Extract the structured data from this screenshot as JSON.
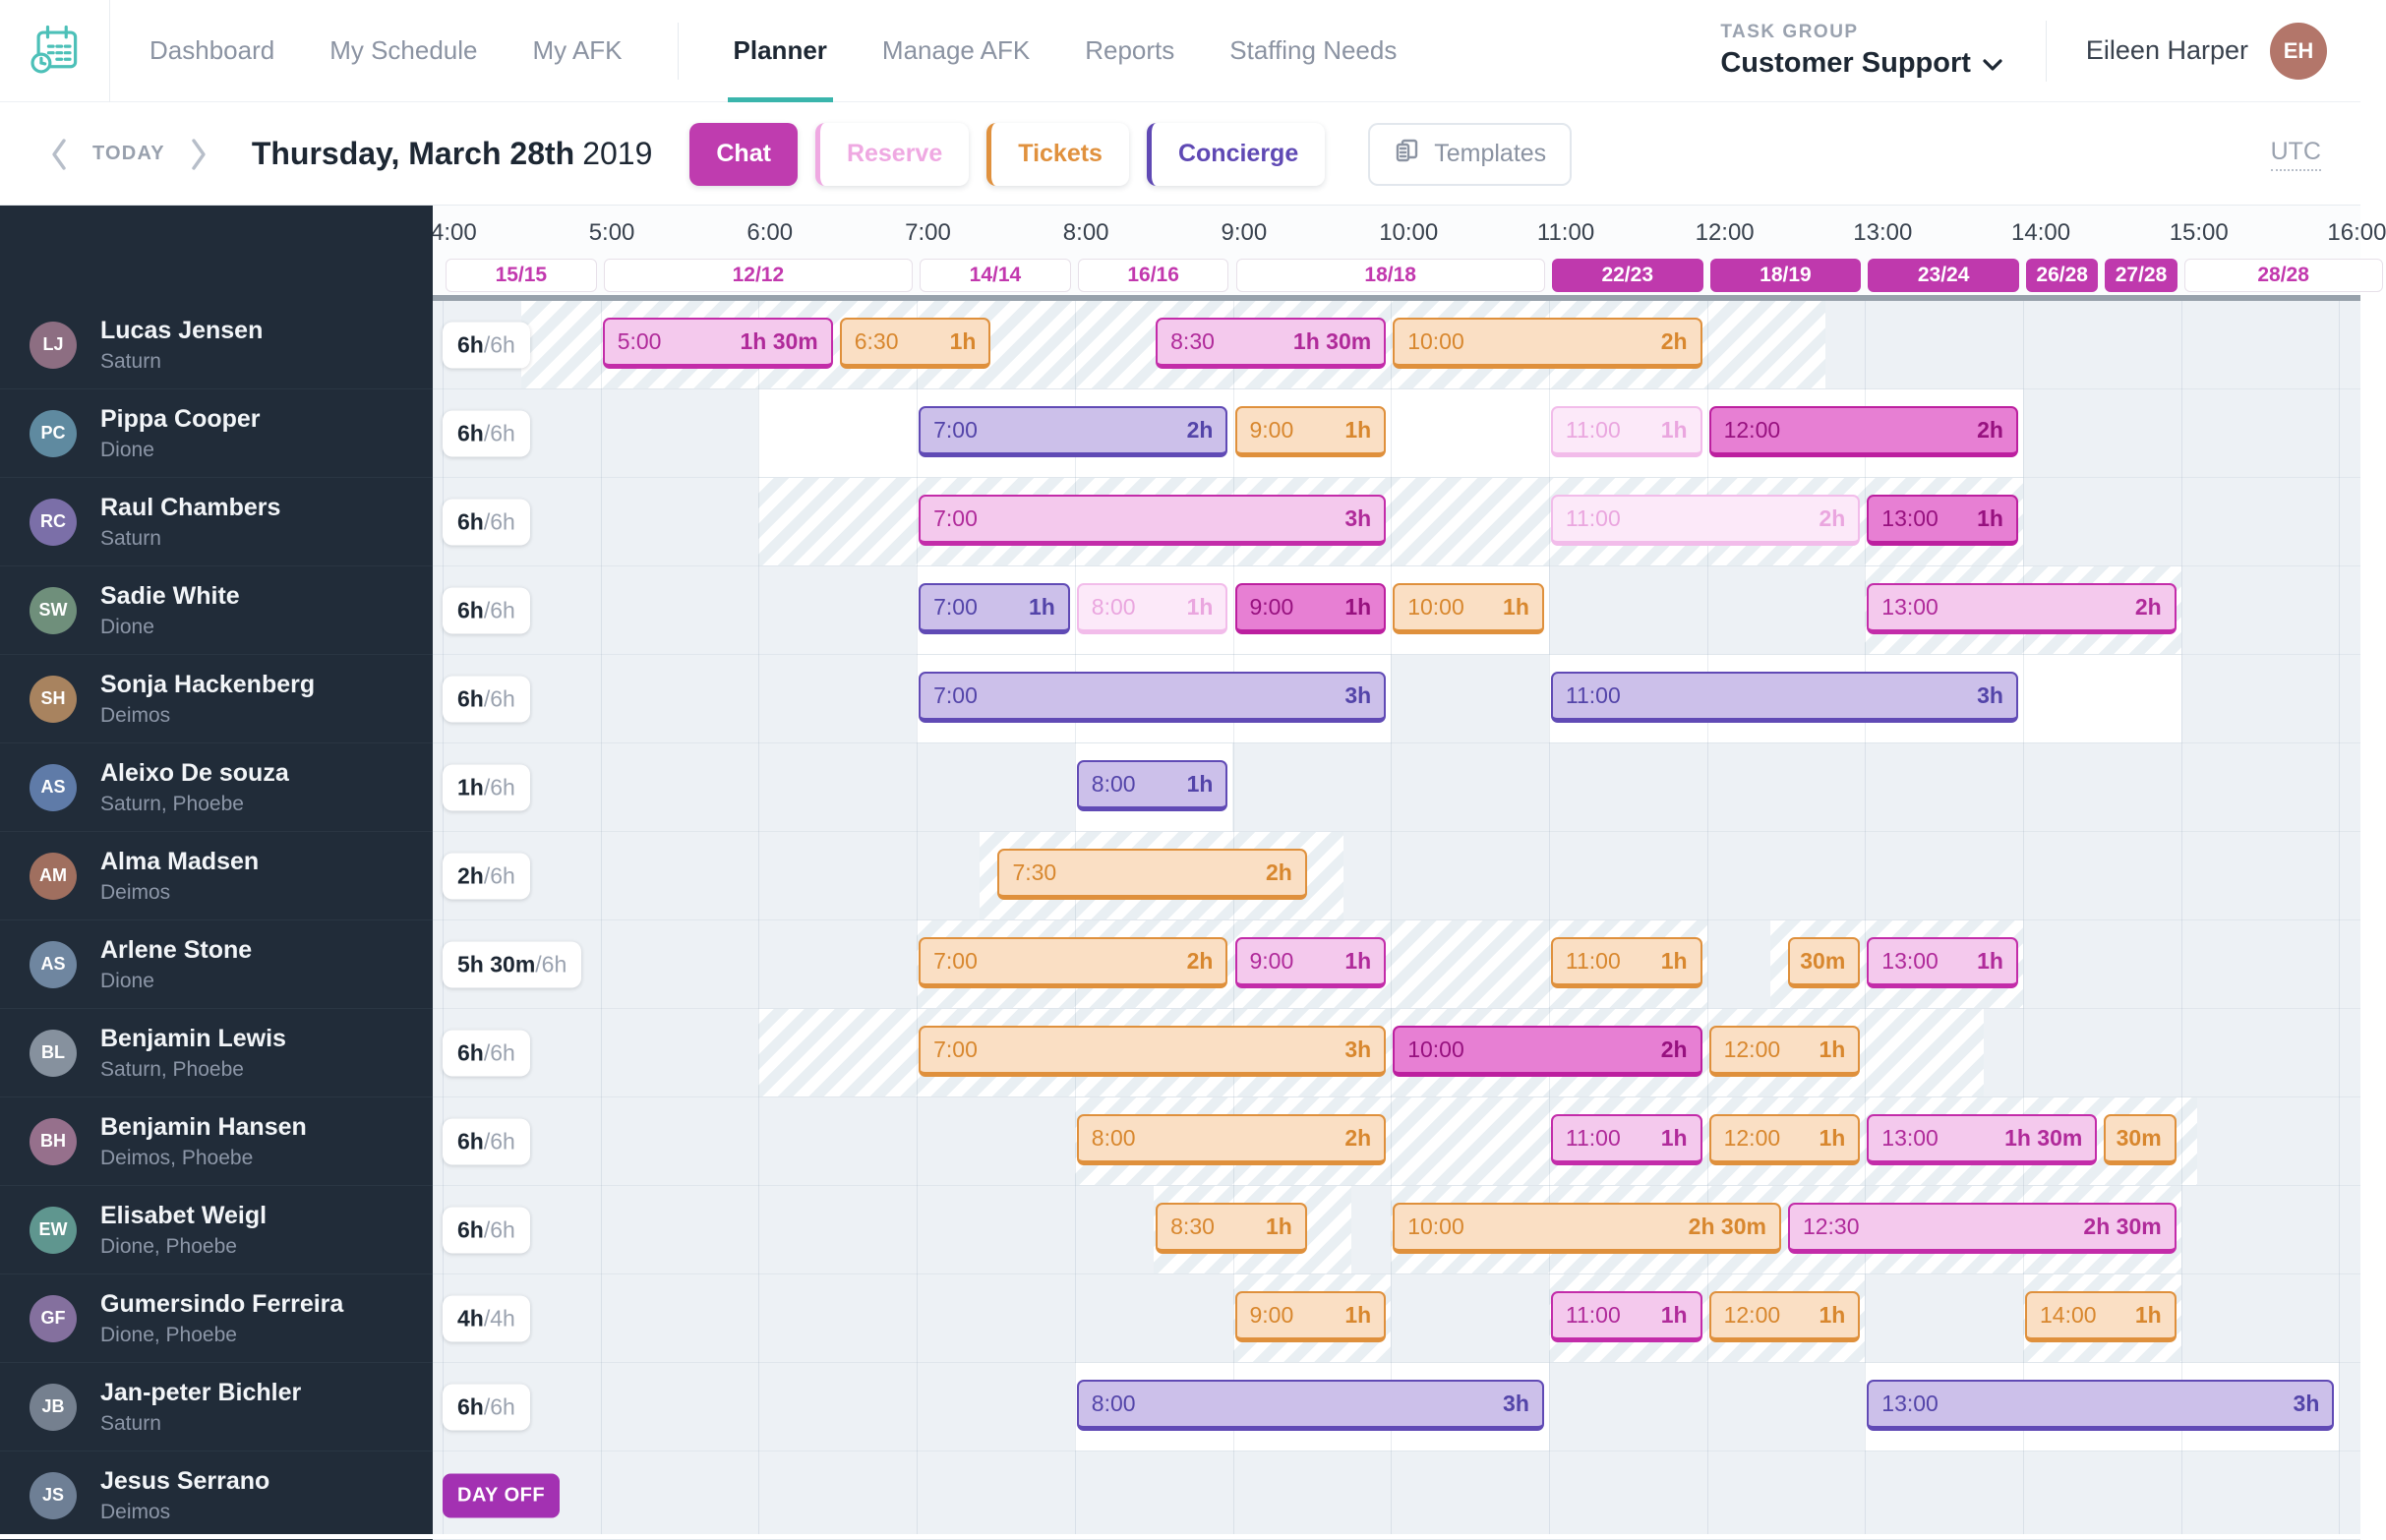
{
  "nav": {
    "items": [
      "Dashboard",
      "My Schedule",
      "My AFK",
      "Planner",
      "Manage AFK",
      "Reports",
      "Staffing Needs"
    ],
    "active": "Planner",
    "task_group_label": "TASK GROUP",
    "task_group_value": "Customer Support",
    "user_name": "Eileen Harper"
  },
  "toolbar": {
    "today_label": "TODAY",
    "date_main": "Thursday, March 28th",
    "date_year": "2019",
    "filters": [
      {
        "label": "Chat",
        "type": "chat",
        "active": true
      },
      {
        "label": "Reserve",
        "type": "reserve",
        "active": false
      },
      {
        "label": "Tickets",
        "type": "tickets",
        "active": false
      },
      {
        "label": "Concierge",
        "type": "concierge",
        "active": false
      }
    ],
    "templates_label": "Templates",
    "timezone_label": "UTC"
  },
  "colors": {
    "chat": "#bf3caf",
    "reserve": "#efa9e2",
    "tickets": "#e0913e",
    "concierge": "#5f49b4",
    "coverage_filled": "#bf39ad",
    "brand_teal": "#3ab5ac",
    "day_off": "#a331b2"
  },
  "timeline": {
    "hour_labels": [
      "4:00",
      "5:00",
      "6:00",
      "7:00",
      "8:00",
      "9:00",
      "10:00",
      "11:00",
      "12:00",
      "13:00",
      "14:00",
      "15:00",
      "16:00"
    ],
    "coverage": [
      {
        "label": "15/15",
        "from": 4,
        "to": 5,
        "filled": false
      },
      {
        "label": "12/12",
        "from": 5,
        "to": 7,
        "filled": false
      },
      {
        "label": "14/14",
        "from": 7,
        "to": 8,
        "filled": false
      },
      {
        "label": "16/16",
        "from": 8,
        "to": 9,
        "filled": false
      },
      {
        "label": "18/18",
        "from": 9,
        "to": 11,
        "filled": false
      },
      {
        "label": "22/23",
        "from": 11,
        "to": 12,
        "filled": true
      },
      {
        "label": "18/19",
        "from": 12,
        "to": 13,
        "filled": true
      },
      {
        "label": "23/24",
        "from": 13,
        "to": 14,
        "filled": true
      },
      {
        "label": "26/28",
        "from": 14,
        "to": 14.5,
        "filled": true
      },
      {
        "label": "27/28",
        "from": 14.5,
        "to": 15,
        "filled": true
      },
      {
        "label": "28/28",
        "from": 15,
        "to": 16.3,
        "filled": false
      }
    ]
  },
  "rows": [
    {
      "name": "Lucas Jensen",
      "team": "Saturn",
      "hours_done": "6h",
      "hours_total": "/6h",
      "day_off": false,
      "zones": [
        {
          "kind": "hatch",
          "from": 4.5,
          "to": 12.75
        }
      ],
      "shifts": [
        {
          "type": "chat",
          "from": 5,
          "to": 6.5,
          "start": "5:00",
          "duration": "1h 30m",
          "deep": false
        },
        {
          "type": "tickets",
          "from": 6.5,
          "to": 7.5,
          "start": "6:30",
          "duration": "1h",
          "deep": false
        },
        {
          "type": "chat",
          "from": 8.5,
          "to": 10,
          "start": "8:30",
          "duration": "1h 30m",
          "deep": false
        },
        {
          "type": "tickets",
          "from": 10,
          "to": 12,
          "start": "10:00",
          "duration": "2h",
          "deep": false
        }
      ]
    },
    {
      "name": "Pippa Cooper",
      "team": "Dione",
      "hours_done": "6h",
      "hours_total": "/6h",
      "day_off": false,
      "zones": [
        {
          "kind": "white",
          "from": 6,
          "to": 14
        }
      ],
      "shifts": [
        {
          "type": "concierge",
          "from": 7,
          "to": 9,
          "start": "7:00",
          "duration": "2h",
          "deep": false
        },
        {
          "type": "tickets",
          "from": 9,
          "to": 10,
          "start": "9:00",
          "duration": "1h",
          "deep": false
        },
        {
          "type": "reserve",
          "from": 11,
          "to": 12,
          "start": "11:00",
          "duration": "1h",
          "deep": false
        },
        {
          "type": "chat",
          "from": 12,
          "to": 14,
          "start": "12:00",
          "duration": "2h",
          "deep": true
        }
      ]
    },
    {
      "name": "Raul Chambers",
      "team": "Saturn",
      "hours_done": "6h",
      "hours_total": "/6h",
      "day_off": false,
      "zones": [
        {
          "kind": "hatch",
          "from": 6,
          "to": 14
        }
      ],
      "shifts": [
        {
          "type": "chat",
          "from": 7,
          "to": 10,
          "start": "7:00",
          "duration": "3h",
          "deep": false
        },
        {
          "type": "reserve",
          "from": 11,
          "to": 13,
          "start": "11:00",
          "duration": "2h",
          "deep": false
        },
        {
          "type": "chat",
          "from": 13,
          "to": 14,
          "start": "13:00",
          "duration": "1h",
          "deep": true
        }
      ]
    },
    {
      "name": "Sadie White",
      "team": "Dione",
      "hours_done": "6h",
      "hours_total": "/6h",
      "day_off": false,
      "zones": [
        {
          "kind": "white",
          "from": 7,
          "to": 11
        },
        {
          "kind": "hatch",
          "from": 13,
          "to": 15
        }
      ],
      "shifts": [
        {
          "type": "concierge",
          "from": 7,
          "to": 8,
          "start": "7:00",
          "duration": "1h",
          "deep": false
        },
        {
          "type": "reserve",
          "from": 8,
          "to": 9,
          "start": "8:00",
          "duration": "1h",
          "deep": false
        },
        {
          "type": "chat",
          "from": 9,
          "to": 10,
          "start": "9:00",
          "duration": "1h",
          "deep": true
        },
        {
          "type": "tickets",
          "from": 10,
          "to": 11,
          "start": "10:00",
          "duration": "1h",
          "deep": false
        },
        {
          "type": "chat",
          "from": 13,
          "to": 15,
          "start": "13:00",
          "duration": "2h",
          "deep": false
        }
      ]
    },
    {
      "name": "Sonja Hackenberg",
      "team": "Deimos",
      "hours_done": "6h",
      "hours_total": "/6h",
      "day_off": false,
      "zones": [
        {
          "kind": "white",
          "from": 7,
          "to": 10
        },
        {
          "kind": "white",
          "from": 11,
          "to": 15
        }
      ],
      "shifts": [
        {
          "type": "concierge",
          "from": 7,
          "to": 10,
          "start": "7:00",
          "duration": "3h",
          "deep": false
        },
        {
          "type": "concierge",
          "from": 11,
          "to": 14,
          "start": "11:00",
          "duration": "3h",
          "deep": false
        }
      ]
    },
    {
      "name": "Aleixo De souza",
      "team": "Saturn, Phoebe",
      "hours_done": "1h",
      "hours_total": "/6h",
      "day_off": false,
      "zones": [
        {
          "kind": "white",
          "from": 8,
          "to": 9
        }
      ],
      "shifts": [
        {
          "type": "concierge",
          "from": 8,
          "to": 9,
          "start": "8:00",
          "duration": "1h",
          "deep": false
        }
      ]
    },
    {
      "name": "Alma Madsen",
      "team": "Deimos",
      "hours_done": "2h",
      "hours_total": "/6h",
      "day_off": false,
      "zones": [
        {
          "kind": "hatch",
          "from": 7.4,
          "to": 9.7
        }
      ],
      "shifts": [
        {
          "type": "tickets",
          "from": 7.5,
          "to": 9.5,
          "start": "7:30",
          "duration": "2h",
          "deep": false
        }
      ]
    },
    {
      "name": "Arlene Stone",
      "team": "Dione",
      "hours_done": "5h 30m",
      "hours_total": "/6h",
      "day_off": false,
      "zones": [
        {
          "kind": "hatch",
          "from": 7,
          "to": 12
        },
        {
          "kind": "hatch",
          "from": 12.4,
          "to": 14
        }
      ],
      "shifts": [
        {
          "type": "tickets",
          "from": 7,
          "to": 9,
          "start": "7:00",
          "duration": "2h",
          "deep": false
        },
        {
          "type": "chat",
          "from": 9,
          "to": 10,
          "start": "9:00",
          "duration": "1h",
          "deep": false
        },
        {
          "type": "tickets",
          "from": 11,
          "to": 12,
          "start": "11:00",
          "duration": "1h",
          "deep": false
        },
        {
          "type": "tickets",
          "from": 12.5,
          "to": 13,
          "start": "",
          "duration": "30m",
          "deep": false
        },
        {
          "type": "chat",
          "from": 13,
          "to": 14,
          "start": "13:00",
          "duration": "1h",
          "deep": false
        }
      ]
    },
    {
      "name": "Benjamin Lewis",
      "team": "Saturn, Phoebe",
      "hours_done": "6h",
      "hours_total": "/6h",
      "day_off": false,
      "zones": [
        {
          "kind": "hatch",
          "from": 6,
          "to": 13.75
        }
      ],
      "shifts": [
        {
          "type": "tickets",
          "from": 7,
          "to": 10,
          "start": "7:00",
          "duration": "3h",
          "deep": false
        },
        {
          "type": "chat",
          "from": 10,
          "to": 12,
          "start": "10:00",
          "duration": "2h",
          "deep": true
        },
        {
          "type": "tickets",
          "from": 12,
          "to": 13,
          "start": "12:00",
          "duration": "1h",
          "deep": false
        }
      ]
    },
    {
      "name": "Benjamin Hansen",
      "team": "Deimos, Phoebe",
      "hours_done": "6h",
      "hours_total": "/6h",
      "day_off": false,
      "zones": [
        {
          "kind": "hatch",
          "from": 8,
          "to": 15.1
        }
      ],
      "shifts": [
        {
          "type": "tickets",
          "from": 8,
          "to": 10,
          "start": "8:00",
          "duration": "2h",
          "deep": false
        },
        {
          "type": "chat",
          "from": 11,
          "to": 12,
          "start": "11:00",
          "duration": "1h",
          "deep": false
        },
        {
          "type": "tickets",
          "from": 12,
          "to": 13,
          "start": "12:00",
          "duration": "1h",
          "deep": false
        },
        {
          "type": "chat",
          "from": 13,
          "to": 14.5,
          "start": "13:00",
          "duration": "1h 30m",
          "deep": false
        },
        {
          "type": "tickets",
          "from": 14.5,
          "to": 15,
          "start": "",
          "duration": "30m",
          "deep": false
        }
      ]
    },
    {
      "name": "Elisabet Weigl",
      "team": "Dione, Phoebe",
      "hours_done": "6h",
      "hours_total": "/6h",
      "day_off": false,
      "zones": [
        {
          "kind": "hatch",
          "from": 8.5,
          "to": 9.75
        },
        {
          "kind": "hatch",
          "from": 10,
          "to": 15
        }
      ],
      "shifts": [
        {
          "type": "tickets",
          "from": 8.5,
          "to": 9.5,
          "start": "8:30",
          "duration": "1h",
          "deep": false
        },
        {
          "type": "tickets",
          "from": 10,
          "to": 12.5,
          "start": "10:00",
          "duration": "2h 30m",
          "deep": false
        },
        {
          "type": "chat",
          "from": 12.5,
          "to": 15,
          "start": "12:30",
          "duration": "2h 30m",
          "deep": false
        }
      ]
    },
    {
      "name": "Gumersindo Ferreira",
      "team": "Dione, Phoebe",
      "hours_done": "4h",
      "hours_total": "/4h",
      "day_off": false,
      "zones": [
        {
          "kind": "hatch",
          "from": 9,
          "to": 10
        },
        {
          "kind": "hatch",
          "from": 11,
          "to": 13
        },
        {
          "kind": "hatch",
          "from": 14,
          "to": 15
        }
      ],
      "shifts": [
        {
          "type": "tickets",
          "from": 9,
          "to": 10,
          "start": "9:00",
          "duration": "1h",
          "deep": false
        },
        {
          "type": "chat",
          "from": 11,
          "to": 12,
          "start": "11:00",
          "duration": "1h",
          "deep": false
        },
        {
          "type": "tickets",
          "from": 12,
          "to": 13,
          "start": "12:00",
          "duration": "1h",
          "deep": false
        },
        {
          "type": "tickets",
          "from": 14,
          "to": 15,
          "start": "14:00",
          "duration": "1h",
          "deep": false
        }
      ]
    },
    {
      "name": "Jan-peter Bichler",
      "team": "Saturn",
      "hours_done": "6h",
      "hours_total": "/6h",
      "day_off": false,
      "zones": [
        {
          "kind": "white",
          "from": 8,
          "to": 11
        },
        {
          "kind": "white",
          "from": 13,
          "to": 16
        }
      ],
      "shifts": [
        {
          "type": "concierge",
          "from": 8,
          "to": 11,
          "start": "8:00",
          "duration": "3h",
          "deep": false
        },
        {
          "type": "concierge",
          "from": 13,
          "to": 16,
          "start": "13:00",
          "duration": "3h",
          "deep": false
        }
      ]
    },
    {
      "name": "Jesus Serrano",
      "team": "Deimos",
      "hours_done": "",
      "hours_total": "",
      "day_off": true,
      "day_off_label": "DAY OFF",
      "zones": [],
      "shifts": []
    }
  ]
}
